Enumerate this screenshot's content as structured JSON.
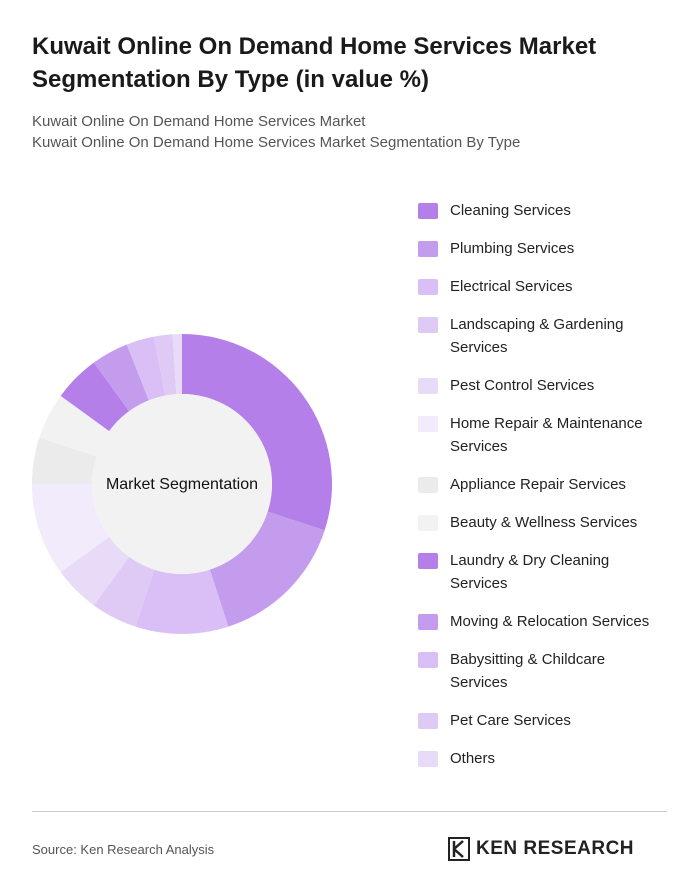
{
  "chart_data": {
    "type": "donut",
    "title": "Kuwait Online On Demand Home Services Market Segmentation By Type (in value %)",
    "subtitle": [
      "Kuwait Online On Demand Home Services Market",
      "Kuwait Online On Demand Home Services Market Segmentation By Type"
    ],
    "center_text": "Market Segmentation",
    "categories": [
      "Cleaning Services",
      "Plumbing Services",
      "Electrical Services",
      "Landscaping & Gardening Services",
      "Pest Control Services",
      "Home Repair & Maintenance Services",
      "Appliance Repair Services",
      "Beauty & Wellness Services",
      "Laundry & Dry Cleaning Services",
      "Moving & Relocation Services",
      "Babysitting & Childcare Services",
      "Pet Care Services",
      "Others"
    ],
    "values": [
      30,
      15,
      10,
      5,
      5,
      10,
      5,
      5,
      5,
      4,
      3,
      2,
      1
    ],
    "colors": [
      "#b57fe9",
      "#c39ced",
      "#d9bff5",
      "#dfc9f5",
      "#e8dbf8",
      "#f1ebfb",
      "#ebebeb",
      "#f2f2f2",
      "#b57fe9",
      "#c39ced",
      "#d9bff5",
      "#dfc9f5",
      "#e8dbf8"
    ],
    "source": "Source: Ken Research Analysis",
    "brand": "KEN RESEARCH"
  }
}
